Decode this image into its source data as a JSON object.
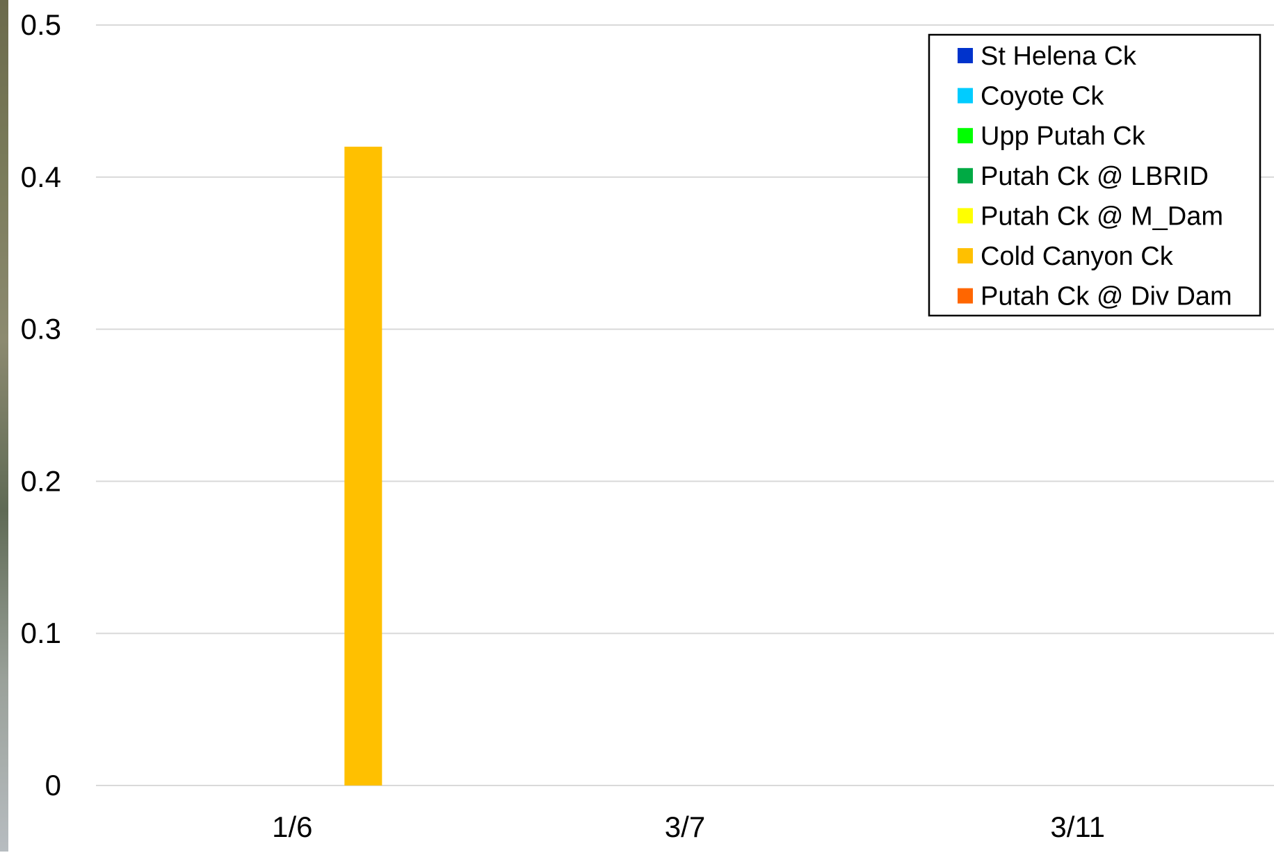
{
  "chart_data": {
    "type": "bar",
    "title": "",
    "xlabel": "",
    "ylabel": "",
    "categories": [
      "1/6",
      "3/7",
      "3/11"
    ],
    "ylim": [
      0,
      0.5
    ],
    "yticks": [
      "0",
      "0.1",
      "0.2",
      "0.3",
      "0.4",
      "0.5"
    ],
    "grid": true,
    "legend_position": "top-right",
    "series": [
      {
        "name": "St Helena Ck",
        "color": "#0033cc",
        "values": [
          0,
          0,
          0
        ]
      },
      {
        "name": "Coyote Ck",
        "color": "#00ccff",
        "values": [
          0,
          0,
          0
        ]
      },
      {
        "name": "Upp Putah Ck",
        "color": "#00ff00",
        "values": [
          0,
          0,
          0
        ]
      },
      {
        "name": "Putah Ck @ LBRID",
        "color": "#00aa44",
        "values": [
          0,
          0,
          0
        ]
      },
      {
        "name": "Putah Ck @ M_Dam",
        "color": "#ffff00",
        "values": [
          0,
          0,
          0
        ]
      },
      {
        "name": "Cold Canyon Ck",
        "color": "#ffc000",
        "values": [
          0.42,
          0,
          0
        ]
      },
      {
        "name": "Putah Ck @ Div Dam",
        "color": "#ff6600",
        "values": [
          0,
          0,
          0
        ]
      }
    ]
  }
}
